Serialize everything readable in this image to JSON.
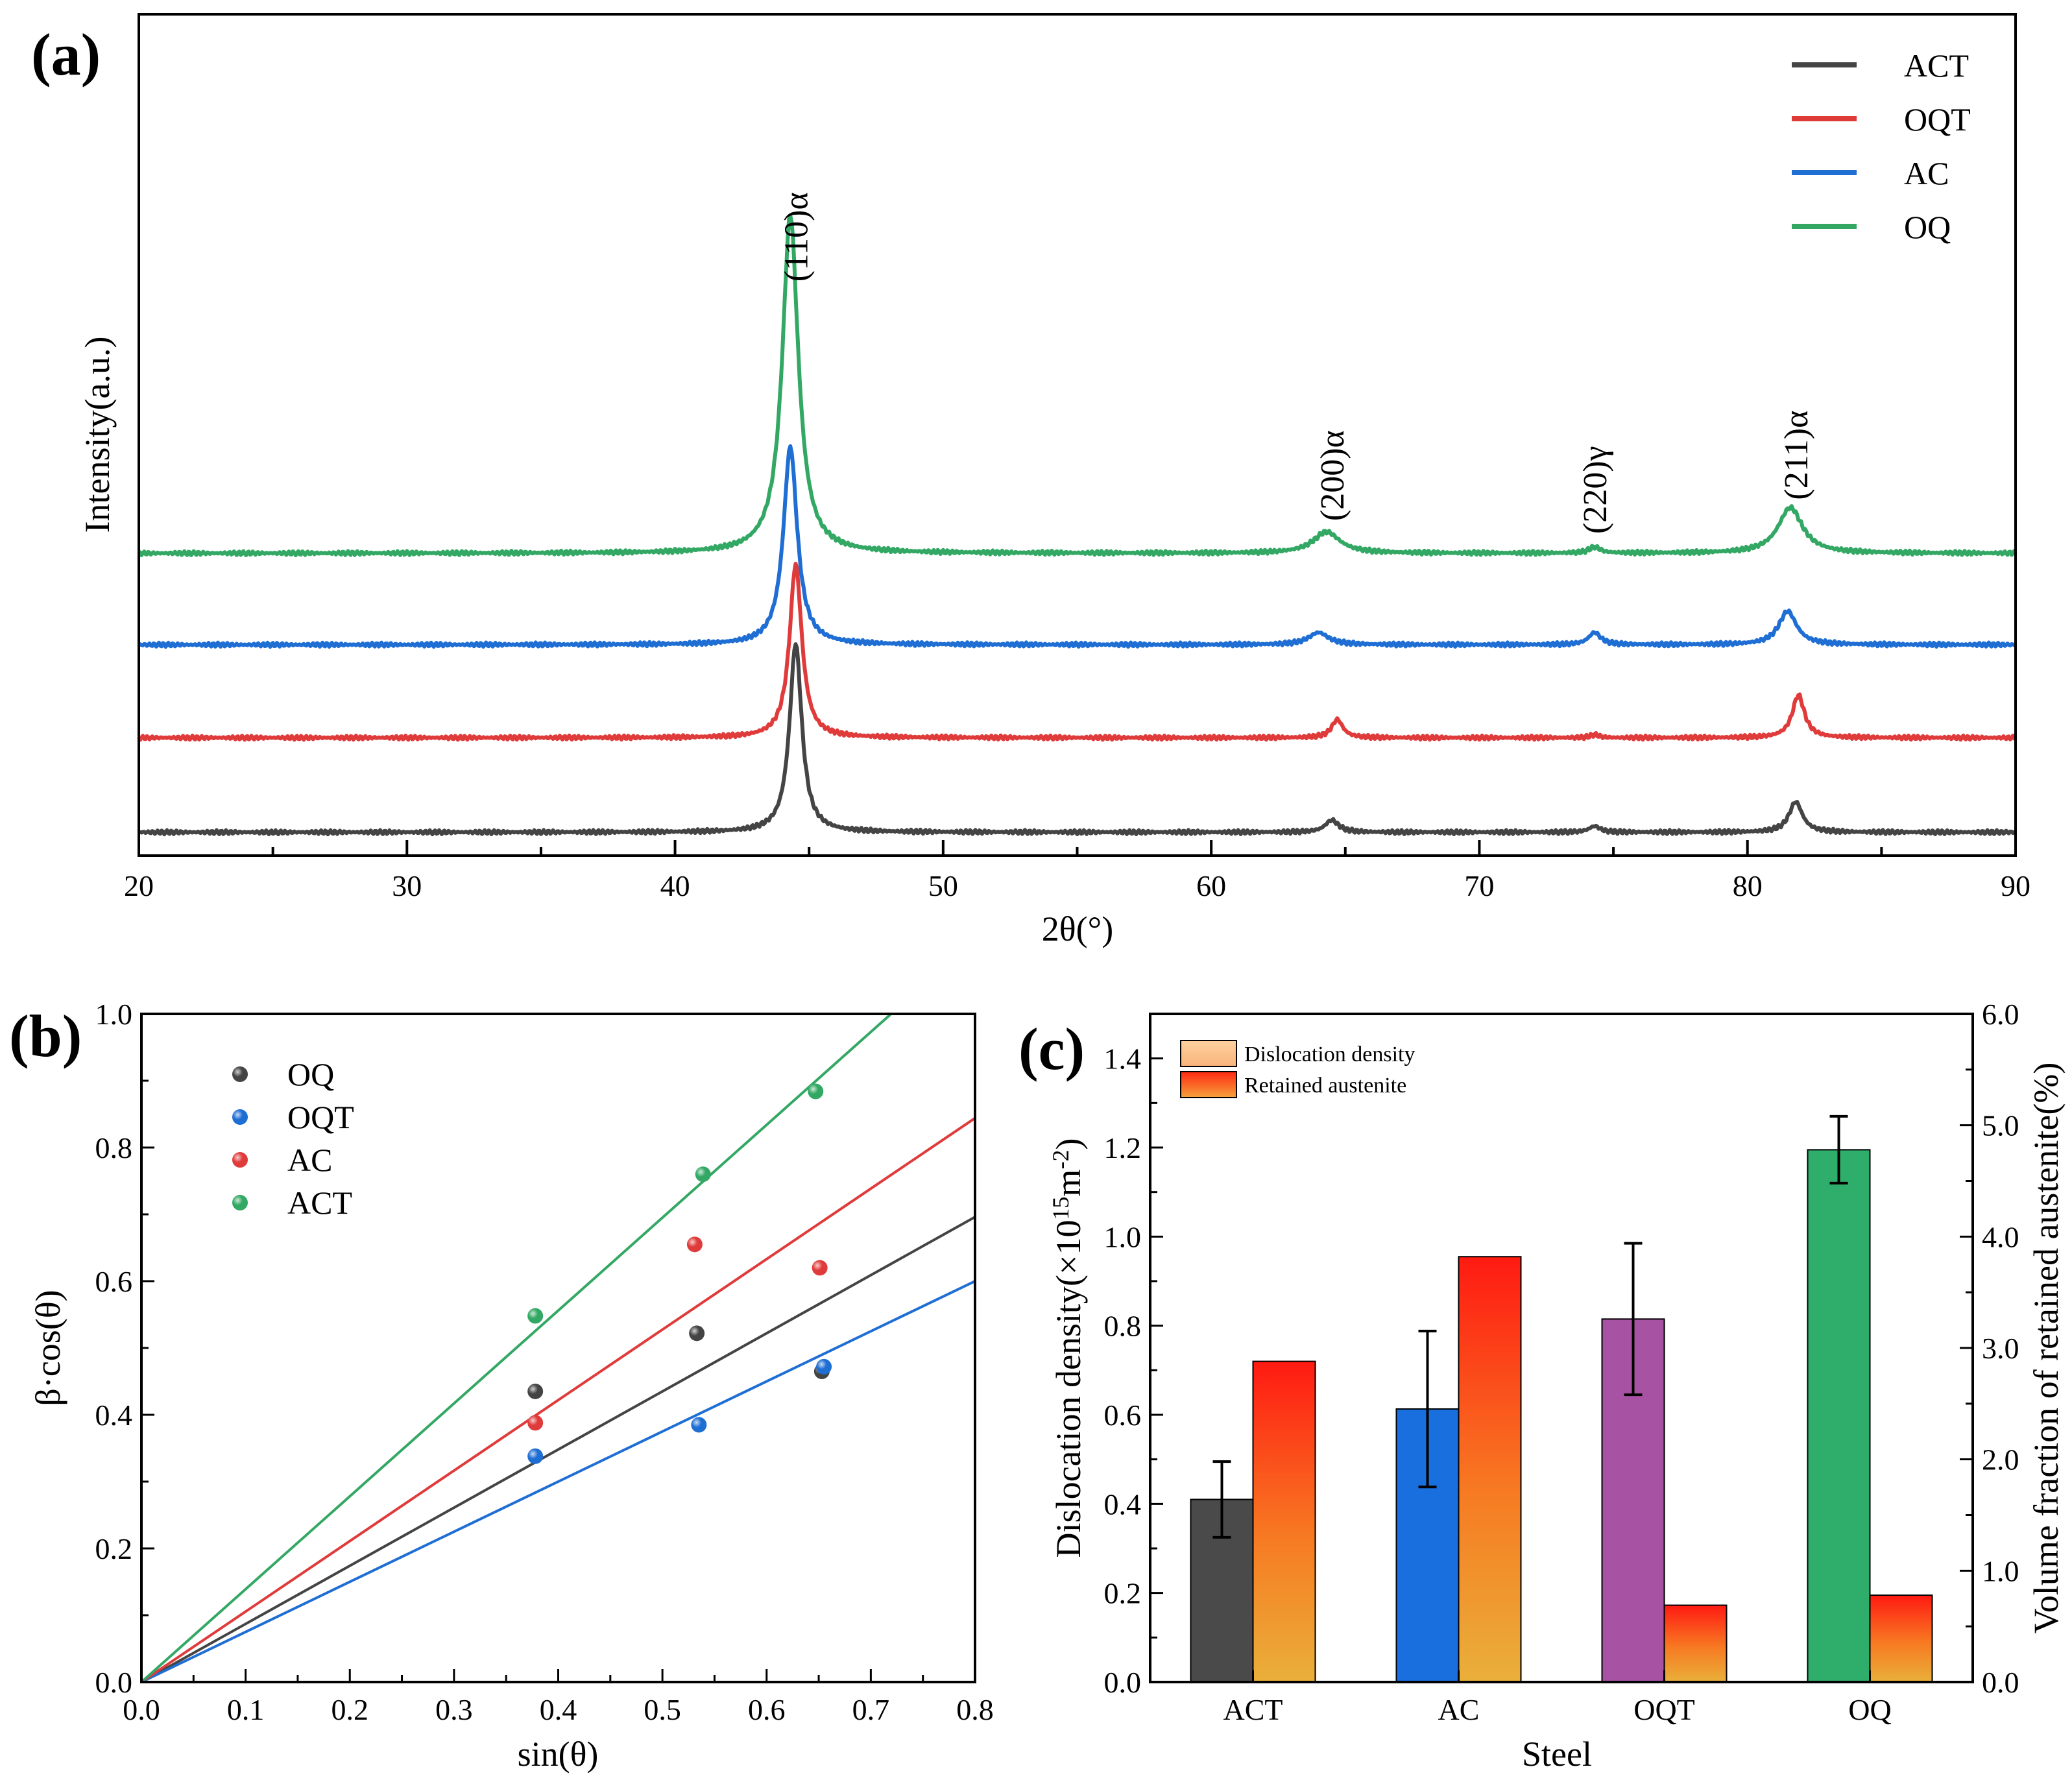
{
  "chart_data": [
    {
      "panel": "(a)",
      "type": "line",
      "xlabel": "2θ(°)",
      "ylabel": "Intensity(a.u.)",
      "xlim": [
        20,
        90
      ],
      "xticks": [
        "20",
        "30",
        "40",
        "50",
        "60",
        "70",
        "80",
        "90"
      ],
      "legend": {
        "position": "top-right",
        "entries": [
          "ACT",
          "OQT",
          "AC",
          "OQ"
        ]
      },
      "peak_labels": [
        {
          "text": "(110)α",
          "x": 44.5
        },
        {
          "text": "(200)α",
          "x": 64.5
        },
        {
          "text": "(220)γ",
          "x": 74.3
        },
        {
          "text": "(211)α",
          "x": 81.8
        }
      ],
      "series": [
        {
          "name": "ACT",
          "color": "#444444",
          "baseline": 0.0,
          "peaks": [
            {
              "x": 44.5,
              "h": 0.62,
              "w": 0.55
            },
            {
              "x": 64.5,
              "h": 0.04,
              "w": 0.6
            },
            {
              "x": 74.3,
              "h": 0.02,
              "w": 0.5
            },
            {
              "x": 81.8,
              "h": 0.1,
              "w": 0.6
            }
          ]
        },
        {
          "name": "OQT",
          "color": "#e03b3b",
          "baseline": 0.31,
          "peaks": [
            {
              "x": 44.5,
              "h": 0.57,
              "w": 0.55
            },
            {
              "x": 64.7,
              "h": 0.06,
              "w": 0.5
            },
            {
              "x": 74.3,
              "h": 0.01,
              "w": 0.4
            },
            {
              "x": 81.9,
              "h": 0.14,
              "w": 0.55
            }
          ]
        },
        {
          "name": "AC",
          "color": "#1f6ed4",
          "baseline": 0.615,
          "peaks": [
            {
              "x": 44.3,
              "h": 0.65,
              "w": 0.62
            },
            {
              "x": 64.0,
              "h": 0.04,
              "w": 0.9
            },
            {
              "x": 74.3,
              "h": 0.04,
              "w": 0.55
            },
            {
              "x": 81.5,
              "h": 0.11,
              "w": 0.8
            }
          ]
        },
        {
          "name": "OQ",
          "color": "#33a864",
          "baseline": 0.915,
          "peaks": [
            {
              "x": 44.3,
              "h": 1.11,
              "w": 0.72
            },
            {
              "x": 64.3,
              "h": 0.07,
              "w": 1.2
            },
            {
              "x": 74.3,
              "h": 0.02,
              "w": 0.5
            },
            {
              "x": 81.6,
              "h": 0.15,
              "w": 1.1
            }
          ]
        }
      ]
    },
    {
      "panel": "(b)",
      "type": "scatter",
      "xlabel": "sin(θ)",
      "ylabel": "β·cos(θ)",
      "xlim": [
        0.0,
        0.8
      ],
      "ylim": [
        0.0,
        1.0
      ],
      "xticks": [
        "0.0",
        "0.1",
        "0.2",
        "0.3",
        "0.4",
        "0.5",
        "0.6",
        "0.7",
        "0.8"
      ],
      "yticks": [
        "0.0",
        "0.2",
        "0.4",
        "0.6",
        "0.8",
        "1.0"
      ],
      "legend": {
        "position": "top-left",
        "entries": [
          "OQ",
          "OQT",
          "AC",
          "ACT"
        ]
      },
      "series": [
        {
          "name": "OQ",
          "color": "#444444",
          "slope": 0.87,
          "points": [
            [
              0.378,
              0.435
            ],
            [
              0.533,
              0.522
            ],
            [
              0.653,
              0.465
            ]
          ]
        },
        {
          "name": "OQT",
          "color": "#1f6ed4",
          "slope": 0.75,
          "points": [
            [
              0.378,
              0.338
            ],
            [
              0.535,
              0.385
            ],
            [
              0.655,
              0.472
            ]
          ]
        },
        {
          "name": "AC",
          "color": "#e03b3b",
          "slope": 1.055,
          "points": [
            [
              0.378,
              0.388
            ],
            [
              0.531,
              0.655
            ],
            [
              0.651,
              0.62
            ]
          ]
        },
        {
          "name": "ACT",
          "color": "#33a864",
          "slope": 1.39,
          "points": [
            [
              0.378,
              0.548
            ],
            [
              0.539,
              0.76
            ],
            [
              0.647,
              0.884
            ]
          ]
        }
      ]
    },
    {
      "panel": "(c)",
      "type": "bar",
      "xlabel": "Steel",
      "ylabel_left": "Dislocation density(×10¹⁵m⁻²)",
      "ylabel_left_parts": {
        "a": "Dislocation density(×10",
        "b": "15",
        "c": "m",
        "d": "-2",
        "e": ")"
      },
      "ylabel_right": "Volume fraction of retained austenite(%)",
      "ylim_left": [
        0.0,
        1.5
      ],
      "ylim_right": [
        0.0,
        6.0
      ],
      "yticks_left": [
        "0.0",
        "0.2",
        "0.4",
        "0.6",
        "0.8",
        "1.0",
        "1.2",
        "1.4"
      ],
      "yticks_right": [
        "0.0",
        "1.0",
        "2.0",
        "3.0",
        "4.0",
        "5.0",
        "6.0"
      ],
      "categories": [
        "ACT",
        "AC",
        "OQT",
        "OQ"
      ],
      "legend": {
        "position": "top-left",
        "entries": [
          "Dislocation density",
          "Retained austenite"
        ]
      },
      "dislocation_density": {
        "values": [
          0.41,
          0.613,
          0.815,
          1.195
        ],
        "errors": [
          0.085,
          0.175,
          0.17,
          0.075
        ],
        "colors": [
          "#4a4a4a",
          "#1a6fde",
          "#a852a3",
          "#2fad6a"
        ]
      },
      "retained_austenite": {
        "values": [
          2.88,
          3.82,
          0.69,
          0.78
        ]
      }
    }
  ]
}
